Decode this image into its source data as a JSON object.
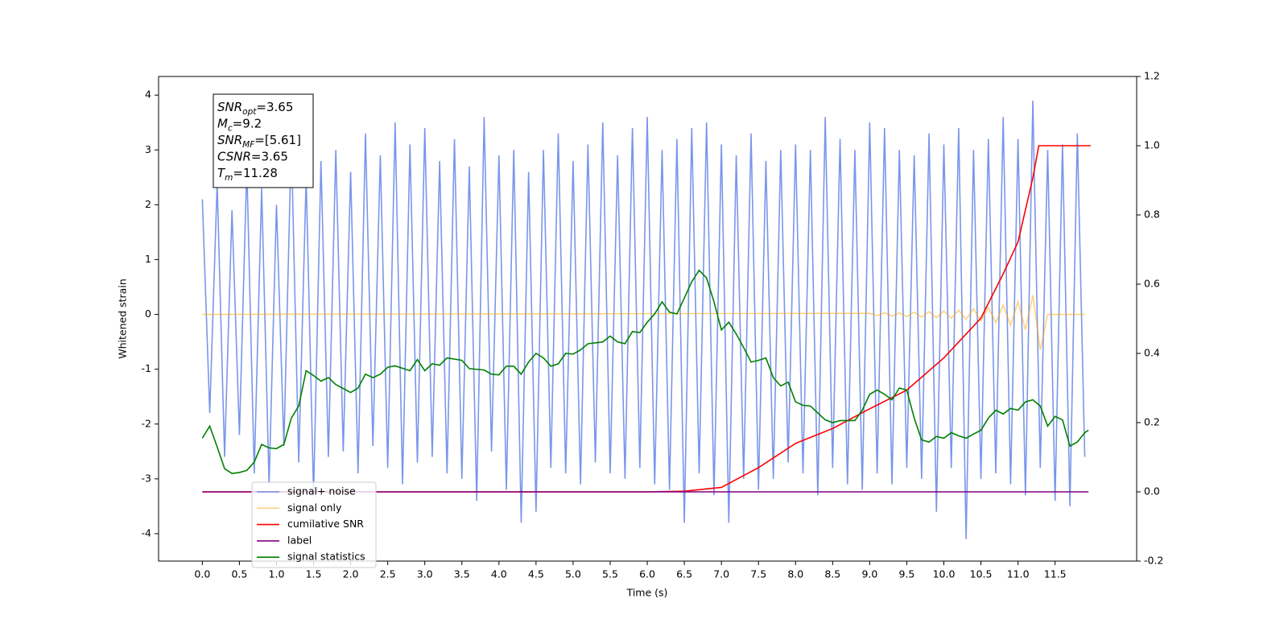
{
  "chart_data": {
    "type": "line",
    "xlabel": "Time (s)",
    "ylabel": "Whitened strain",
    "xlim": [
      -0.59,
      12.6
    ],
    "ylim": [
      -4.5,
      4.34
    ],
    "y2lim": [
      -0.2,
      1.2
    ],
    "xticks": [
      {
        "value": 0,
        "label": "0.0"
      },
      0.5,
      {
        "value": 1,
        "label": "1.0"
      },
      1.5,
      {
        "value": 2,
        "label": "2.0"
      },
      2.5,
      {
        "value": 3,
        "label": "3.0"
      },
      3.5,
      {
        "value": 4,
        "label": "4.0"
      },
      4.5,
      {
        "value": 5,
        "label": "5.0"
      },
      5.5,
      {
        "value": 6,
        "label": "6.0"
      },
      6.5,
      {
        "value": 7,
        "label": "7.0"
      },
      7.5,
      {
        "value": 8,
        "label": "8.0"
      },
      8.5,
      {
        "value": 9,
        "label": "9.0"
      },
      9.5,
      {
        "value": 10,
        "label": "10.0"
      },
      10.5,
      {
        "value": 11,
        "label": "11.0"
      },
      11.5
    ],
    "yticks": [
      -4,
      -3,
      -2,
      -1,
      0,
      1,
      2,
      3,
      4
    ],
    "y2ticks": [
      -0.2,
      {
        "value": 0,
        "label": "0.0"
      },
      0.2,
      0.4,
      0.6,
      0.8,
      {
        "value": 1,
        "label": "1.0"
      },
      1.2
    ],
    "grid": false,
    "legend": "lower left",
    "annotations": [
      {
        "symbol": "SNR",
        "sub": "opt",
        "text": "=3.65"
      },
      {
        "symbol": "M",
        "sub": "c",
        "text": "=9.2"
      },
      {
        "symbol": "SNR",
        "sub": "MF",
        "text": "=[5.61]"
      },
      {
        "symbol": "CSNR",
        "text": "=3.65"
      },
      {
        "symbol": "T",
        "sub": "m",
        "text": "=11.28"
      }
    ],
    "series": [
      {
        "name": "signal+ noise",
        "color": "royalblue",
        "alpha": 0.7,
        "axis": "y",
        "x": [
          0,
          0.1,
          0.2,
          0.3,
          0.4,
          0.5,
          0.6,
          0.7,
          0.8,
          0.9,
          1,
          1.1,
          1.2,
          1.3,
          1.4,
          1.5,
          1.6,
          1.7,
          1.8,
          1.9,
          2,
          2.1,
          2.2,
          2.3,
          2.4,
          2.5,
          2.6,
          2.7,
          2.8,
          2.9,
          3,
          3.1,
          3.2,
          3.3,
          3.4,
          3.5,
          3.6,
          3.7,
          3.8,
          3.9,
          4,
          4.1,
          4.2,
          4.3,
          4.4,
          4.5,
          4.6,
          4.7,
          4.8,
          4.9,
          5,
          5.1,
          5.2,
          5.3,
          5.4,
          5.5,
          5.6,
          5.7,
          5.8,
          5.9,
          6,
          6.1,
          6.2,
          6.3,
          6.4,
          6.5,
          6.6,
          6.7,
          6.8,
          6.9,
          7,
          7.1,
          7.2,
          7.3,
          7.4,
          7.5,
          7.6,
          7.7,
          7.8,
          7.9,
          8,
          8.1,
          8.2,
          8.3,
          8.4,
          8.5,
          8.6,
          8.7,
          8.8,
          8.9,
          9,
          9.1,
          9.2,
          9.3,
          9.4,
          9.5,
          9.6,
          9.7,
          9.8,
          9.9,
          10,
          10.1,
          10.2,
          10.3,
          10.4,
          10.5,
          10.6,
          10.7,
          10.8,
          10.9,
          11,
          11.1,
          11.2,
          11.3,
          11.4,
          11.5,
          11.6,
          11.7,
          11.8,
          11.9
        ],
        "values": [
          2.1,
          -1.8,
          2.4,
          -2.6,
          1.9,
          -2.2,
          2.7,
          -2.9,
          2.3,
          -3.1,
          2.0,
          -2.4,
          3.2,
          -2.7,
          2.5,
          -3.3,
          2.8,
          -2.6,
          3.0,
          -2.5,
          2.6,
          -2.9,
          3.3,
          -2.4,
          2.9,
          -2.8,
          3.5,
          -3.1,
          3.1,
          -2.7,
          3.4,
          -2.6,
          2.8,
          -2.9,
          3.2,
          -3.0,
          2.7,
          -3.4,
          3.6,
          -2.5,
          2.9,
          -3.2,
          3.0,
          -3.8,
          2.6,
          -3.6,
          3.0,
          -2.8,
          3.3,
          -2.9,
          2.8,
          -3.1,
          3.1,
          -2.7,
          3.5,
          -2.9,
          2.9,
          -3.0,
          3.4,
          -2.8,
          3.6,
          -3.1,
          3.0,
          -3.2,
          3.2,
          -3.8,
          3.4,
          -2.9,
          3.5,
          -3.3,
          3.1,
          -3.8,
          2.9,
          -3.0,
          3.3,
          -3.2,
          2.8,
          -3.0,
          3.0,
          -2.7,
          3.1,
          -2.9,
          3.0,
          -3.3,
          3.6,
          -2.8,
          3.2,
          -3.1,
          3.0,
          -3.2,
          3.5,
          -2.9,
          3.4,
          -3.1,
          3.0,
          -2.8,
          2.9,
          -3.0,
          3.3,
          -3.6,
          3.1,
          -2.8,
          3.4,
          -4.1,
          3.0,
          -3.0,
          3.2,
          -2.9,
          3.6,
          -3.1,
          3.2,
          -3.3,
          3.9,
          -2.8,
          3.0,
          -3.4,
          3.1,
          -3.5,
          3.3,
          -2.6
        ]
      },
      {
        "name": "signal only",
        "color": "orange",
        "alpha": 0.5,
        "axis": "y",
        "x": [
          0,
          9,
          9.1,
          9.2,
          9.3,
          9.4,
          9.5,
          9.6,
          9.7,
          9.8,
          9.9,
          10,
          10.1,
          10.2,
          10.3,
          10.4,
          10.5,
          10.6,
          10.7,
          10.8,
          10.9,
          11,
          11.1,
          11.2,
          11.3,
          11.4,
          11.9
        ],
        "values": [
          0,
          0.02,
          -0.02,
          0.03,
          -0.03,
          0.03,
          -0.04,
          0.04,
          -0.05,
          0.05,
          -0.06,
          0.06,
          -0.07,
          0.08,
          -0.09,
          0.1,
          -0.12,
          0.13,
          -0.15,
          0.17,
          -0.2,
          0.23,
          -0.28,
          0.35,
          -0.65,
          0,
          0
        ]
      },
      {
        "name": "cumilative SNR",
        "color": "red",
        "alpha": 1,
        "axis": "y2",
        "x": [
          0,
          6,
          6.5,
          7,
          7.5,
          8,
          8.5,
          9,
          9.5,
          10,
          10.5,
          10.8,
          11,
          11.2,
          11.28,
          11.98
        ],
        "values": [
          0,
          0,
          0.002,
          0.013,
          0.07,
          0.14,
          0.183,
          0.24,
          0.294,
          0.387,
          0.502,
          0.63,
          0.722,
          0.907,
          1,
          1
        ]
      },
      {
        "name": "label",
        "color": "purple",
        "alpha": 1,
        "axis": "y2",
        "x": [
          0,
          11.95
        ],
        "values": [
          0,
          0
        ]
      },
      {
        "name": "signal statistics",
        "color": "green",
        "alpha": 1,
        "axis": "y2",
        "x": [
          0,
          0.1,
          0.2,
          0.3,
          0.4,
          0.5,
          0.6,
          0.7,
          0.8,
          0.9,
          1,
          1.1,
          1.2,
          1.3,
          1.4,
          1.5,
          1.6,
          1.7,
          1.8,
          2,
          2.1,
          2.2,
          2.3,
          2.4,
          2.5,
          2.6,
          2.8,
          2.9,
          3,
          3.1,
          3.2,
          3.3,
          3.5,
          3.6,
          3.8,
          3.9,
          4,
          4.1,
          4.2,
          4.3,
          4.4,
          4.5,
          4.6,
          4.7,
          4.8,
          4.9,
          5,
          5.1,
          5.2,
          5.4,
          5.5,
          5.6,
          5.7,
          5.8,
          5.9,
          6,
          6.1,
          6.2,
          6.3,
          6.4,
          6.5,
          6.6,
          6.7,
          6.8,
          6.9,
          7,
          7.1,
          7.2,
          7.3,
          7.4,
          7.5,
          7.6,
          7.7,
          7.8,
          7.9,
          8,
          8.1,
          8.2,
          8.4,
          8.5,
          8.6,
          8.8,
          8.9,
          9,
          9.1,
          9.2,
          9.3,
          9.4,
          9.5,
          9.6,
          9.7,
          9.8,
          9.9,
          10,
          10.1,
          10.2,
          10.3,
          10.4,
          10.5,
          10.6,
          10.7,
          10.8,
          10.9,
          11,
          11.1,
          11.2,
          11.3,
          11.4,
          11.5,
          11.6,
          11.7,
          11.8,
          11.9,
          11.95
        ],
        "values": [
          0.155,
          0.19,
          0.13,
          0.067,
          0.053,
          0.056,
          0.062,
          0.086,
          0.137,
          0.127,
          0.125,
          0.137,
          0.213,
          0.248,
          0.35,
          0.336,
          0.32,
          0.33,
          0.31,
          0.287,
          0.3,
          0.34,
          0.33,
          0.34,
          0.36,
          0.364,
          0.35,
          0.382,
          0.35,
          0.37,
          0.366,
          0.387,
          0.38,
          0.356,
          0.352,
          0.34,
          0.338,
          0.363,
          0.363,
          0.34,
          0.375,
          0.4,
          0.387,
          0.363,
          0.37,
          0.4,
          0.398,
          0.41,
          0.428,
          0.433,
          0.45,
          0.433,
          0.428,
          0.463,
          0.46,
          0.49,
          0.514,
          0.549,
          0.519,
          0.514,
          0.56,
          0.607,
          0.64,
          0.618,
          0.549,
          0.468,
          0.49,
          0.456,
          0.417,
          0.375,
          0.38,
          0.387,
          0.33,
          0.306,
          0.317,
          0.26,
          0.25,
          0.248,
          0.208,
          0.2,
          0.206,
          0.206,
          0.236,
          0.282,
          0.294,
          0.282,
          0.266,
          0.3,
          0.294,
          0.213,
          0.15,
          0.144,
          0.16,
          0.155,
          0.171,
          0.162,
          0.155,
          0.167,
          0.178,
          0.213,
          0.236,
          0.225,
          0.241,
          0.236,
          0.26,
          0.266,
          0.248,
          0.19,
          0.218,
          0.208,
          0.132,
          0.144,
          0.171,
          0.178
        ]
      }
    ]
  }
}
